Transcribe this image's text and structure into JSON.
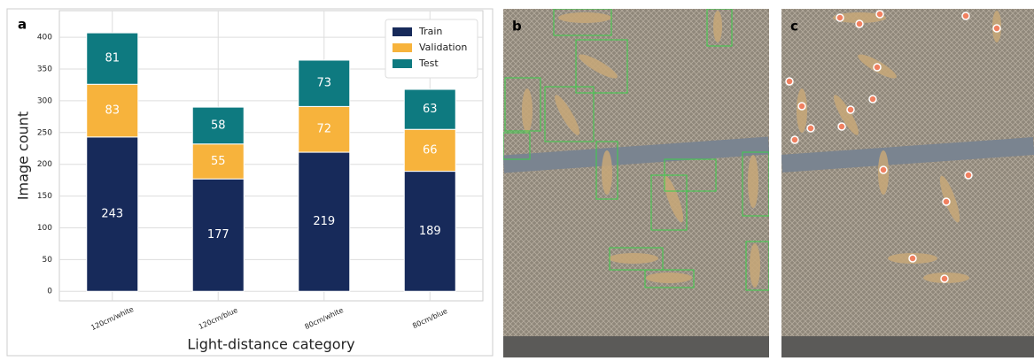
{
  "chart_data": {
    "type": "stacked_bar",
    "panel_label": "a",
    "categories": [
      "120cm/white",
      "120cm/blue",
      "80cm/white",
      "80cm/blue"
    ],
    "series": [
      {
        "name": "Train",
        "color": "#172a5a",
        "values": [
          243,
          177,
          219,
          189
        ]
      },
      {
        "name": "Validation",
        "color": "#f7b33c",
        "values": [
          83,
          55,
          72,
          66
        ]
      },
      {
        "name": "Test",
        "color": "#0e7a80",
        "values": [
          81,
          58,
          73,
          63
        ]
      }
    ],
    "xlabel": "Light-distance category",
    "ylabel": "Image count",
    "ylim": [
      -15,
      442
    ],
    "yticks": [
      0,
      50,
      100,
      150,
      200,
      250,
      300,
      350,
      400
    ],
    "grid": true,
    "legend": "upper right"
  },
  "panels": [
    {
      "label": "b"
    },
    {
      "label": "c"
    }
  ]
}
